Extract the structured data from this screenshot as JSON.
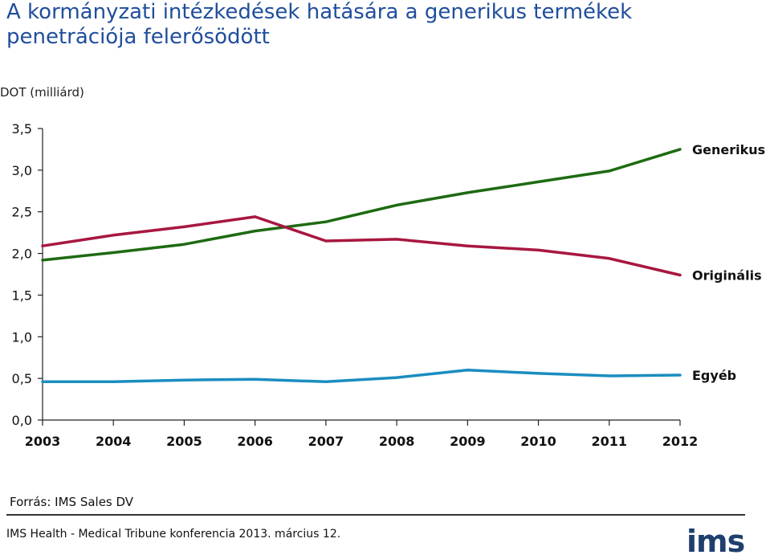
{
  "title": "A kormányzati intézkedések hatására a generikus termékek penetrációja felerősödött",
  "source": "Forrás: IMS Sales DV",
  "footer": "IMS Health - Medical Tribune konferencia 2013. március 12.",
  "logo": "ims",
  "colors": {
    "title": "#1f4e9c",
    "generikus": "#1e6b12",
    "originalis": "#a8173f",
    "egyeb": "#1b8dc0"
  },
  "chart_data": {
    "type": "line",
    "ylabel": "DOT (milliárd)",
    "xlabel": "",
    "ylim": [
      0,
      3.5
    ],
    "yticks": [
      "0,0",
      "0,5",
      "1,0",
      "1,5",
      "2,0",
      "2,5",
      "3,0",
      "3,5"
    ],
    "x": [
      "2003",
      "2004",
      "2005",
      "2006",
      "2007",
      "2008",
      "2009",
      "2010",
      "2011",
      "2012"
    ],
    "series": [
      {
        "name": "Generikus",
        "color": "#1e6b12",
        "values": [
          1.92,
          2.01,
          2.11,
          2.27,
          2.38,
          2.58,
          2.73,
          2.86,
          2.99,
          3.25
        ]
      },
      {
        "name": "Originális",
        "color": "#a8173f",
        "values": [
          2.09,
          2.22,
          2.32,
          2.44,
          2.15,
          2.17,
          2.09,
          2.04,
          1.94,
          1.74
        ]
      },
      {
        "name": "Egyéb",
        "color": "#1b8dc0",
        "values": [
          0.46,
          0.46,
          0.48,
          0.49,
          0.46,
          0.51,
          0.6,
          0.56,
          0.53,
          0.54
        ]
      }
    ],
    "grid": false,
    "legend": "right, labels at line ends"
  }
}
